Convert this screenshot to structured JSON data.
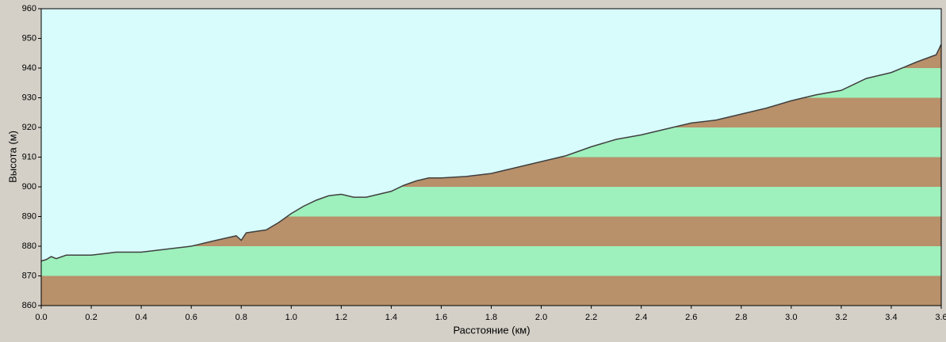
{
  "chart_data": {
    "type": "area",
    "xlabel": "Расстояние  (км)",
    "ylabel": "Высота (м)",
    "x": [
      0,
      0.02,
      0.04,
      0.06,
      0.1,
      0.2,
      0.3,
      0.4,
      0.5,
      0.6,
      0.7,
      0.78,
      0.8,
      0.82,
      0.9,
      0.95,
      1.0,
      1.05,
      1.1,
      1.15,
      1.2,
      1.25,
      1.3,
      1.35,
      1.4,
      1.45,
      1.5,
      1.55,
      1.6,
      1.7,
      1.8,
      1.9,
      2.0,
      2.1,
      2.2,
      2.3,
      2.4,
      2.5,
      2.6,
      2.7,
      2.8,
      2.9,
      3.0,
      3.1,
      3.2,
      3.3,
      3.4,
      3.5,
      3.58,
      3.6
    ],
    "values": [
      875,
      875.5,
      876.5,
      875.8,
      877,
      877,
      878,
      878,
      879,
      880,
      882,
      883.5,
      882,
      884.5,
      885.5,
      888,
      891,
      893.5,
      895.5,
      897,
      897.5,
      896.5,
      896.5,
      897.5,
      898.5,
      900.5,
      902,
      903,
      903,
      903.5,
      904.5,
      906.5,
      908.5,
      910.5,
      913.5,
      916,
      917.5,
      919.5,
      921.5,
      922.5,
      924.5,
      926.5,
      929,
      931,
      932.5,
      936.5,
      938.5,
      942,
      944.5,
      948
    ],
    "line_color": "#404040",
    "sky_color": "#d8fcfc",
    "band_colors": [
      "#b8906a",
      "#9ef0bc"
    ],
    "xlim": [
      0,
      3.6
    ],
    "xticks": [
      {
        "value": 0,
        "label": "0.0"
      },
      {
        "value": 0.2,
        "label": "0.2"
      },
      {
        "value": 0.4,
        "label": "0.4"
      },
      {
        "value": 0.6,
        "label": "0.6"
      },
      {
        "value": 0.8,
        "label": "0.8"
      },
      {
        "value": 1,
        "label": "1.0"
      },
      {
        "value": 1.2,
        "label": "1.2"
      },
      {
        "value": 1.4,
        "label": "1.4"
      },
      {
        "value": 1.6,
        "label": "1.6"
      },
      {
        "value": 1.8,
        "label": "1.8"
      },
      {
        "value": 2,
        "label": "2.0"
      },
      {
        "value": 2.2,
        "label": "2.2"
      },
      {
        "value": 2.4,
        "label": "2.4"
      },
      {
        "value": 2.6,
        "label": "2.6"
      },
      {
        "value": 2.8,
        "label": "2.8"
      },
      {
        "value": 3,
        "label": "3.0"
      },
      {
        "value": 3.2,
        "label": "3.2"
      },
      {
        "value": 3.4,
        "label": "3.4"
      },
      {
        "value": 3.6,
        "label": "3.6"
      }
    ],
    "ylim": [
      860,
      960
    ],
    "yticks": [
      860,
      870,
      880,
      890,
      900,
      910,
      920,
      930,
      940,
      950,
      960
    ]
  }
}
